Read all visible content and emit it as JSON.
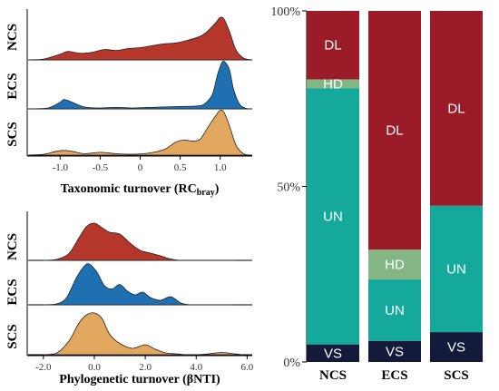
{
  "colors": {
    "NCS": "#b5362a",
    "ECS": "#1f6fb3",
    "SCS": "#e2a75f",
    "DL": "#9b1b28",
    "HD": "#84b584",
    "UN": "#14a99a",
    "VS": "#141b3a"
  },
  "chart_data": [
    {
      "type": "area",
      "subtype": "ridgeline",
      "title": "",
      "xlabel": "Taxonomic turnover (RC",
      "xlabel_sub": "bray",
      "xlabel_end": ")",
      "xlim": [
        -1.4,
        1.4
      ],
      "xticks": [
        -1.0,
        -0.5,
        0,
        0.5,
        1.0
      ],
      "xtick_labels": [
        "-1.0",
        "-0.5",
        "0",
        "0.5",
        "1.0"
      ],
      "series": [
        {
          "name": "NCS",
          "x": [
            -1.4,
            -1.2,
            -1.0,
            -0.9,
            -0.75,
            -0.6,
            -0.45,
            -0.3,
            -0.15,
            0.0,
            0.15,
            0.3,
            0.45,
            0.6,
            0.75,
            0.85,
            0.95,
            1.0,
            1.05,
            1.12,
            1.2,
            1.3,
            1.4
          ],
          "density": [
            0.0,
            0.02,
            0.12,
            0.18,
            0.14,
            0.16,
            0.22,
            0.2,
            0.24,
            0.26,
            0.3,
            0.34,
            0.36,
            0.42,
            0.5,
            0.62,
            0.8,
            0.9,
            0.86,
            0.58,
            0.2,
            0.03,
            0.0
          ]
        },
        {
          "name": "ECS",
          "x": [
            -1.4,
            -1.15,
            -1.0,
            -0.95,
            -0.85,
            -0.7,
            -0.5,
            -0.3,
            -0.1,
            0.1,
            0.3,
            0.5,
            0.7,
            0.8,
            0.9,
            0.97,
            1.03,
            1.08,
            1.12,
            1.17,
            1.25,
            1.35,
            1.4
          ],
          "density": [
            0.0,
            0.02,
            0.14,
            0.2,
            0.14,
            0.04,
            0.02,
            0.03,
            0.02,
            0.03,
            0.04,
            0.05,
            0.06,
            0.1,
            0.3,
            0.75,
            1.0,
            0.95,
            0.8,
            0.4,
            0.08,
            0.0,
            0.0
          ]
        },
        {
          "name": "SCS",
          "x": [
            -1.4,
            -1.2,
            -1.05,
            -0.95,
            -0.85,
            -0.7,
            -0.5,
            -0.3,
            -0.1,
            0.1,
            0.3,
            0.45,
            0.55,
            0.65,
            0.75,
            0.85,
            0.95,
            1.0,
            1.05,
            1.12,
            1.2,
            1.3,
            1.4
          ],
          "density": [
            0.0,
            0.02,
            0.08,
            0.1,
            0.08,
            0.03,
            0.06,
            0.03,
            0.02,
            0.04,
            0.12,
            0.28,
            0.32,
            0.3,
            0.34,
            0.6,
            0.85,
            0.95,
            0.9,
            0.6,
            0.2,
            0.02,
            0.0
          ]
        }
      ]
    },
    {
      "type": "area",
      "subtype": "ridgeline",
      "title": "",
      "xlabel": "Phylogenetic turnover (βNTI)",
      "xlim": [
        -2.6,
        6.2
      ],
      "xticks": [
        -2.0,
        0.0,
        2.0,
        4.0,
        6.0
      ],
      "xtick_labels": [
        "-2.0",
        "0.0",
        "2.0",
        "4.0",
        "6.0"
      ],
      "series": [
        {
          "name": "NCS",
          "x": [
            -2.0,
            -1.5,
            -1.0,
            -0.6,
            -0.3,
            0.0,
            0.3,
            0.6,
            1.0,
            1.4,
            1.8,
            2.2,
            2.6,
            3.0,
            3.4,
            3.8,
            4.5,
            5.5
          ],
          "density": [
            0.0,
            0.02,
            0.15,
            0.5,
            0.75,
            0.82,
            0.72,
            0.62,
            0.58,
            0.38,
            0.22,
            0.16,
            0.1,
            0.03,
            0.0,
            0.0,
            0.0,
            0.0
          ]
        },
        {
          "name": "ECS",
          "x": [
            -2.0,
            -1.5,
            -1.1,
            -0.7,
            -0.4,
            -0.2,
            0.1,
            0.4,
            0.7,
            1.0,
            1.3,
            1.6,
            1.9,
            2.2,
            2.6,
            3.0,
            3.4,
            3.8,
            4.5,
            5.5
          ],
          "density": [
            0.0,
            0.02,
            0.15,
            0.6,
            0.85,
            0.9,
            0.72,
            0.42,
            0.35,
            0.45,
            0.3,
            0.22,
            0.28,
            0.16,
            0.1,
            0.18,
            0.04,
            0.0,
            0.0,
            0.0
          ]
        },
        {
          "name": "SCS",
          "x": [
            -2.0,
            -1.5,
            -1.0,
            -0.6,
            -0.3,
            0.0,
            0.3,
            0.6,
            1.0,
            1.5,
            2.0,
            2.4,
            2.8,
            3.2,
            3.6,
            4.0,
            4.5,
            5.0,
            5.5,
            5.8
          ],
          "density": [
            0.0,
            0.03,
            0.3,
            0.7,
            0.88,
            0.92,
            0.8,
            0.45,
            0.25,
            0.14,
            0.22,
            0.12,
            0.04,
            0.02,
            0.0,
            0.0,
            0.02,
            0.05,
            0.02,
            0.0
          ]
        }
      ]
    },
    {
      "type": "bar",
      "subtype": "stacked-percent",
      "title": "",
      "categories": [
        "NCS",
        "ECS",
        "SCS"
      ],
      "ylim": [
        0,
        100
      ],
      "yticks": [
        0,
        50,
        100
      ],
      "ytick_labels": [
        "0%",
        "50%",
        "100%"
      ],
      "series": [
        {
          "name": "VS",
          "values": [
            5,
            6,
            8.5
          ]
        },
        {
          "name": "UN",
          "values": [
            73,
            17.5,
            36
          ]
        },
        {
          "name": "HD",
          "values": [
            2.5,
            8.5,
            0
          ]
        },
        {
          "name": "DL",
          "values": [
            19.5,
            68,
            55.5
          ]
        }
      ],
      "segment_labels": {
        "NCS": [
          "VS",
          "UN",
          "HD",
          "DL"
        ],
        "ECS": [
          "VS",
          "UN",
          "HD",
          "DL"
        ],
        "SCS": [
          "VS",
          "UN",
          "",
          "DL"
        ]
      }
    }
  ]
}
